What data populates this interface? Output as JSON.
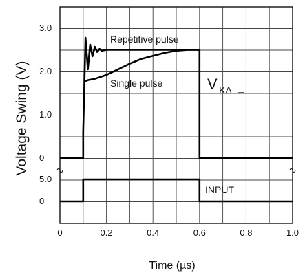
{
  "chart_data": {
    "type": "line",
    "xlabel": "Time (µs)",
    "ylabel": "Voltage Swing (V)",
    "x_ticks": [
      "0",
      "0.2",
      "0.4",
      "0.6",
      "0.8",
      "1.0"
    ],
    "xlim": [
      0,
      1.0
    ],
    "y_ticks_upper": [
      "3.0",
      "2.0",
      "1.0",
      "0"
    ],
    "y_ticks_lower": [
      "5.0",
      "0"
    ],
    "upper_ylim": [
      0,
      3.5
    ],
    "lower_ylim": [
      -1,
      6
    ],
    "grid": true,
    "series": [
      {
        "name": "Repetitive pulse",
        "panel": "upper",
        "x": [
          0,
          0.1,
          0.1,
          0.11,
          0.12,
          0.13,
          0.14,
          0.15,
          0.16,
          0.17,
          0.18,
          0.2,
          0.22,
          0.6,
          0.6,
          1.0
        ],
        "y": [
          0,
          0,
          0.6,
          2.78,
          2.05,
          2.62,
          2.35,
          2.57,
          2.45,
          2.52,
          2.48,
          2.5,
          2.5,
          2.5,
          0,
          0
        ]
      },
      {
        "name": "Single pulse",
        "panel": "upper",
        "x": [
          0.11,
          0.12,
          0.15,
          0.2,
          0.25,
          0.3,
          0.35,
          0.4,
          0.45,
          0.5,
          0.55,
          0.6
        ],
        "y": [
          1.77,
          1.8,
          1.83,
          1.92,
          2.05,
          2.18,
          2.29,
          2.36,
          2.43,
          2.48,
          2.5,
          2.5
        ]
      },
      {
        "name": "INPUT",
        "panel": "lower",
        "x": [
          0,
          0.1,
          0.1,
          0.6,
          0.6,
          1.0
        ],
        "y": [
          0,
          0,
          5.0,
          5.0,
          0,
          0
        ]
      }
    ],
    "annotations": {
      "repetitive": "Repetitive pulse",
      "single": "Single pulse",
      "vka_main": "V",
      "vka_sub": "KA",
      "input": "INPUT"
    }
  },
  "colors": {
    "line": "#000000",
    "grid": "#444444",
    "background": "#ffffff"
  }
}
